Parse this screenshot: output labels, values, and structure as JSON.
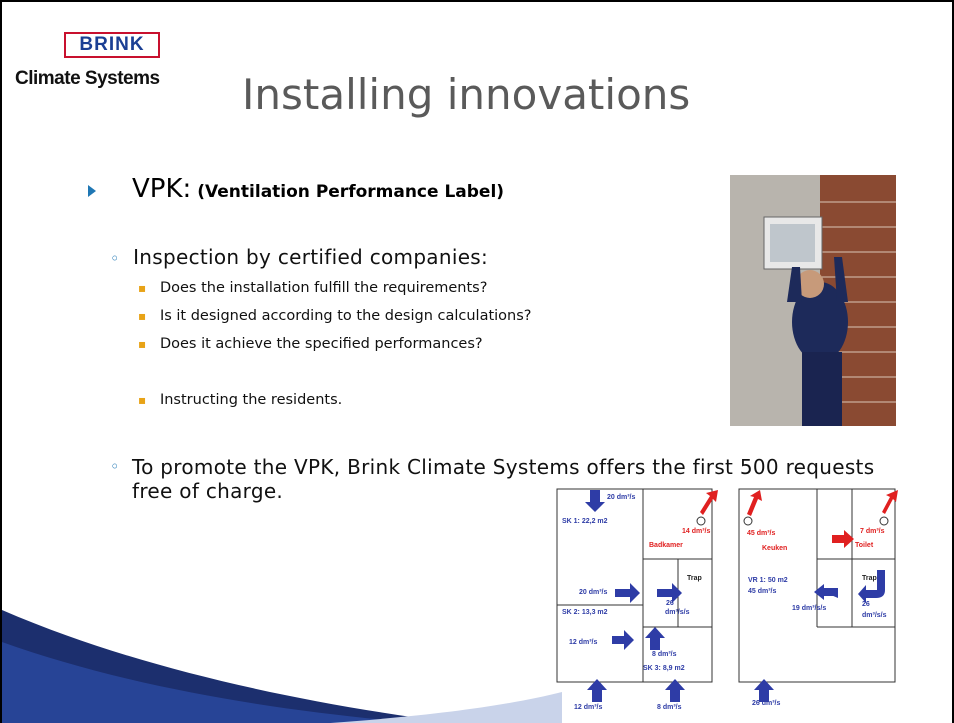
{
  "logo": {
    "brand": "BRINK",
    "tagline": "Climate Systems"
  },
  "title": "Installing innovations",
  "bullets": [
    {
      "label": "VPK:",
      "detail": "(Ventilation Performance Label)",
      "items": [
        {
          "text": "Inspection by certified companies:",
          "subitems": [
            "Does the installation fulfill the requirements?",
            "Is it designed according to the design calculations?",
            "Does it achieve the specified performances?",
            "Instructing the residents."
          ]
        },
        {
          "text": "To promote the VPK, Brink Climate Systems offers the first 500 requests free of charge."
        }
      ]
    }
  ],
  "floor_plans": [
    {
      "labels": [
        "20 dm³/s",
        "SK 1: 22,2 m2",
        "14 dm³/s",
        "Badkamer",
        "Trap",
        "20 dm³/s",
        "26",
        "dm³/s/s",
        "SK 2: 13,3 m2",
        "12 dm³/s",
        "8 dm³/s",
        "SK 3: 8,9 m2",
        "12 dm³/s",
        "8 dm³/s"
      ]
    },
    {
      "labels": [
        "45 dm³/s",
        "Keuken",
        "7 dm³/s",
        "Toilet",
        "Trap",
        "VR 1: 50 m2",
        "45 dm³/s",
        "19 dm³/s/s",
        "26",
        "dm³/s/s",
        "26 dm³/s"
      ]
    }
  ]
}
